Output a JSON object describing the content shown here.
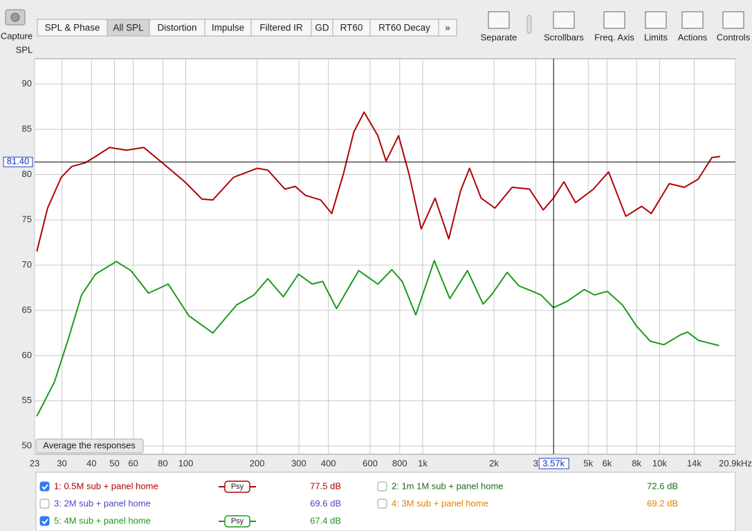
{
  "toolbar": {
    "capture": "Capture",
    "tabs": [
      "SPL & Phase",
      "All SPL",
      "Distortion",
      "Impulse",
      "Filtered IR",
      "GD",
      "RT60",
      "RT60 Decay",
      "»"
    ],
    "selected_tab": 1,
    "buttons": [
      "Separate",
      "Scrollbars",
      "Freq. Axis",
      "Limits",
      "Actions",
      "Controls"
    ]
  },
  "chart_data": {
    "type": "line",
    "y_label": "SPL",
    "xlog": true,
    "grid": true,
    "xlim": [
      23,
      20900
    ],
    "ylim": [
      49.1,
      92.8
    ],
    "xticks": [
      23,
      30,
      40,
      50,
      60,
      80,
      100,
      200,
      300,
      400,
      600,
      800,
      {
        "value": 1000,
        "label": "1k"
      },
      {
        "value": 2000,
        "label": "2k"
      },
      {
        "value": 3000,
        "label": "3"
      },
      {
        "value": 5000,
        "label": "5k"
      },
      {
        "value": 6000,
        "label": "6k"
      },
      {
        "value": 8000,
        "label": "8k"
      },
      {
        "value": 10000,
        "label": "10k"
      },
      {
        "value": 14000,
        "label": "14k"
      },
      {
        "value": 20900,
        "label": "20.9kHz"
      }
    ],
    "yticks": [
      50,
      55,
      60,
      65,
      70,
      75,
      80,
      85,
      90
    ],
    "cursor": {
      "y": 81.4,
      "y_label": "81.40",
      "x": 3570,
      "x_label": "3.57k"
    },
    "average_button": "Average the responses",
    "series": [
      {
        "name": "1: 0.5M sub + panel home",
        "color": "#b00000",
        "checked": true,
        "smoothing": "Psy",
        "reading": "77.5 dB",
        "x": [
          23.5,
          26.1,
          29.8,
          33.0,
          37.6,
          41.6,
          47.6,
          56.2,
          66.5,
          81.3,
          99,
          117,
          130,
          159,
          200,
          222,
          262,
          290,
          320,
          371,
          413,
          463,
          512,
          566,
          647,
          701,
          791,
          875,
          986,
          1128,
          1289,
          1445,
          1577,
          1766,
          2019,
          2388,
          2824,
          3228,
          3566,
          3946,
          4420,
          5257,
          6094,
          7205,
          8402,
          9226,
          10990,
          12730,
          14560,
          16650,
          18030
        ],
        "values": [
          71.5,
          76.3,
          79.7,
          80.9,
          81.3,
          82.0,
          83.0,
          82.7,
          83.0,
          81.1,
          79.2,
          77.3,
          77.2,
          79.7,
          80.7,
          80.5,
          78.4,
          78.7,
          77.7,
          77.2,
          75.7,
          80.1,
          84.7,
          86.9,
          84.3,
          81.5,
          84.3,
          80.1,
          74.0,
          77.4,
          72.9,
          78.2,
          80.7,
          77.4,
          76.3,
          78.6,
          78.4,
          76.1,
          77.4,
          79.2,
          76.9,
          78.4,
          80.3,
          75.4,
          76.5,
          75.7,
          79.0,
          78.6,
          79.5,
          81.9,
          82.0
        ]
      },
      {
        "name": "2: 1m 1M sub + panel home",
        "color": "#1a6e1a",
        "checked": false,
        "reading": "72.6 dB"
      },
      {
        "name": "3: 2M sub + panel home",
        "color": "#4848c8",
        "checked": false,
        "reading": "69.6 dB"
      },
      {
        "name": "4: 3M sub + panel home",
        "color": "#e08000",
        "checked": false,
        "reading": "69.2 dB"
      },
      {
        "name": "5: 4M sub + panel home",
        "color": "#1a9a1a",
        "checked": true,
        "smoothing": "Psy",
        "reading": "67.4 dB",
        "x": [
          23.5,
          27.9,
          31.8,
          36.3,
          41.6,
          50.9,
          58.6,
          69.6,
          84.3,
          103,
          130,
          164,
          194,
          222,
          258,
          299,
          342,
          378,
          433,
          537,
          647,
          741,
          819,
          935,
          1119,
          1302,
          1545,
          1799,
          1951,
          2273,
          2547,
          2914,
          3158,
          3566,
          4072,
          4808,
          5317,
          6014,
          6968,
          7976,
          9134,
          10430,
          12280,
          13130,
          14560,
          17830
        ],
        "values": [
          53.3,
          57.1,
          61.7,
          66.7,
          69.0,
          70.4,
          69.4,
          66.9,
          67.9,
          64.4,
          62.5,
          65.6,
          66.7,
          68.5,
          66.5,
          69.0,
          67.9,
          68.2,
          65.2,
          69.4,
          67.9,
          69.5,
          68.2,
          64.5,
          70.5,
          66.3,
          69.4,
          65.7,
          66.7,
          69.2,
          67.7,
          67.1,
          66.7,
          65.3,
          66.0,
          67.3,
          66.7,
          67.1,
          65.6,
          63.3,
          61.6,
          61.2,
          62.3,
          62.6,
          61.7,
          61.1
        ]
      }
    ]
  }
}
